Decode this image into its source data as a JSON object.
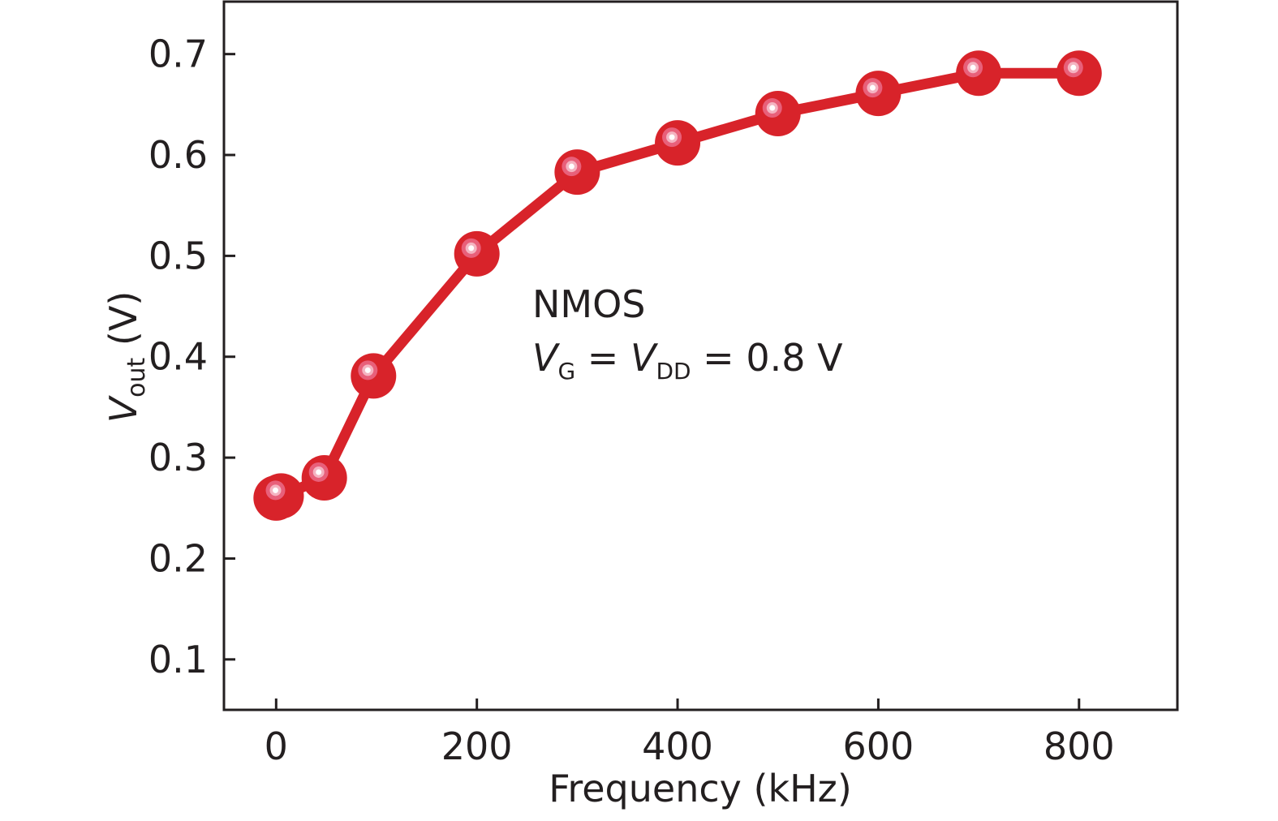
{
  "chart_data": {
    "type": "line",
    "title": "",
    "xlabel": "Frequency (kHz)",
    "ylabel": {
      "main": "V",
      "sub": "out",
      "unit": " (V)"
    },
    "xlim": [
      -52,
      898
    ],
    "ylim": [
      0.05,
      0.752
    ],
    "xticks": [
      0,
      200,
      400,
      600,
      800
    ],
    "yticks": [
      0.1,
      0.2,
      0.3,
      0.4,
      0.5,
      0.6,
      0.7
    ],
    "grid": false,
    "series": [
      {
        "name": "NMOS",
        "color": "#d8232a",
        "x": [
          0,
          5,
          48,
          97,
          200,
          300,
          400,
          500,
          600,
          700,
          800
        ],
        "y": [
          0.26,
          0.262,
          0.28,
          0.381,
          0.502,
          0.583,
          0.612,
          0.641,
          0.661,
          0.681,
          0.681
        ]
      }
    ],
    "annotations": {
      "device": "NMOS",
      "condition": {
        "v1": "V",
        "sub1": "G",
        "eq1": " = ",
        "v2": "V",
        "sub2": "DD",
        "eq2": " = 0.8 V"
      }
    }
  }
}
